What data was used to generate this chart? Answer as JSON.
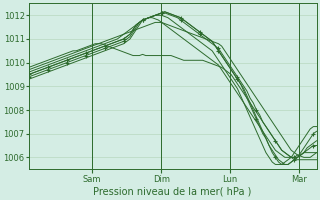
{
  "xlabel": "Pression niveau de la mer( hPa )",
  "bg_color": "#d4ede4",
  "plot_bg_color": "#d4ede4",
  "line_color": "#2d6b2d",
  "grid_color": "#b8d8c0",
  "ylim": [
    1005.5,
    1012.5
  ],
  "yticks": [
    1006,
    1007,
    1008,
    1009,
    1010,
    1011,
    1012
  ],
  "day_labels": [
    "Sam",
    "Dim",
    "Lun",
    "Mar"
  ],
  "day_positions": [
    0.22,
    0.46,
    0.7,
    0.94
  ],
  "series": [
    [
      1009.8,
      1009.85,
      1009.9,
      1009.95,
      1010.0,
      1010.05,
      1010.1,
      1010.15,
      1010.2,
      1010.25,
      1010.3,
      1010.35,
      1010.4,
      1010.45,
      1010.5,
      1010.5,
      1010.55,
      1010.6,
      1010.65,
      1010.7,
      1010.75,
      1010.8,
      1010.8,
      1010.8,
      1010.75,
      1010.7,
      1010.65,
      1010.6,
      1010.55,
      1010.5,
      1010.45,
      1010.4,
      1010.35,
      1010.3,
      1010.3,
      1010.3,
      1010.35,
      1010.3,
      1010.3,
      1010.3,
      1010.3,
      1010.3,
      1010.3,
      1010.3,
      1010.3,
      1010.3,
      1010.25,
      1010.2,
      1010.15,
      1010.1,
      1010.1,
      1010.1,
      1010.1,
      1010.1,
      1010.1,
      1010.1,
      1010.05,
      1010.0,
      1009.95,
      1009.9,
      1009.85,
      1009.8,
      1009.7,
      1009.6,
      1009.5,
      1009.3,
      1009.1,
      1008.9,
      1008.7,
      1008.5,
      1008.3,
      1008.1,
      1007.9,
      1007.7,
      1007.5,
      1007.3,
      1007.1,
      1006.9,
      1006.7,
      1006.5,
      1006.3,
      1006.2,
      1006.1,
      1006.0,
      1005.9,
      1005.9,
      1005.9,
      1005.9,
      1005.9,
      1005.9,
      1005.9,
      1005.9
    ],
    [
      1009.7,
      1009.75,
      1009.8,
      1009.85,
      1009.9,
      1009.95,
      1010.0,
      1010.05,
      1010.1,
      1010.15,
      1010.2,
      1010.25,
      1010.3,
      1010.35,
      1010.4,
      1010.45,
      1010.5,
      1010.55,
      1010.6,
      1010.65,
      1010.7,
      1010.75,
      1010.8,
      1010.85,
      1010.9,
      1010.95,
      1011.0,
      1011.05,
      1011.1,
      1011.15,
      1011.2,
      1011.25,
      1011.3,
      1011.35,
      1011.4,
      1011.45,
      1011.5,
      1011.55,
      1011.6,
      1011.65,
      1011.7,
      1011.7,
      1011.7,
      1011.65,
      1011.6,
      1011.55,
      1011.5,
      1011.45,
      1011.4,
      1011.35,
      1011.3,
      1011.25,
      1011.2,
      1011.15,
      1011.1,
      1011.05,
      1011.0,
      1010.95,
      1010.9,
      1010.85,
      1010.8,
      1010.7,
      1010.5,
      1010.3,
      1010.1,
      1009.9,
      1009.7,
      1009.5,
      1009.3,
      1009.1,
      1008.9,
      1008.7,
      1008.5,
      1008.3,
      1008.1,
      1007.9,
      1007.7,
      1007.5,
      1007.3,
      1007.1,
      1006.9,
      1006.7,
      1006.5,
      1006.3,
      1006.2,
      1006.1,
      1006.05,
      1006.0,
      1006.0,
      1006.0,
      1006.1,
      1006.2
    ],
    [
      1009.6,
      1009.65,
      1009.7,
      1009.75,
      1009.8,
      1009.85,
      1009.9,
      1009.95,
      1010.0,
      1010.05,
      1010.1,
      1010.15,
      1010.2,
      1010.25,
      1010.3,
      1010.35,
      1010.4,
      1010.45,
      1010.5,
      1010.55,
      1010.6,
      1010.65,
      1010.7,
      1010.75,
      1010.8,
      1010.85,
      1010.9,
      1010.95,
      1011.0,
      1011.1,
      1011.2,
      1011.3,
      1011.4,
      1011.5,
      1011.6,
      1011.7,
      1011.8,
      1011.85,
      1011.9,
      1011.9,
      1011.85,
      1011.8,
      1011.7,
      1011.6,
      1011.5,
      1011.4,
      1011.3,
      1011.2,
      1011.1,
      1011.0,
      1010.9,
      1010.8,
      1010.7,
      1010.6,
      1010.5,
      1010.4,
      1010.3,
      1010.2,
      1010.1,
      1010.0,
      1009.9,
      1009.7,
      1009.5,
      1009.3,
      1009.1,
      1008.9,
      1008.7,
      1008.5,
      1008.3,
      1008.1,
      1007.9,
      1007.7,
      1007.5,
      1007.3,
      1007.1,
      1006.9,
      1006.7,
      1006.5,
      1006.3,
      1006.2,
      1006.1,
      1006.0,
      1006.0,
      1006.0,
      1006.0,
      1006.0,
      1006.1,
      1006.2,
      1006.2,
      1006.2,
      1006.2,
      1006.2
    ],
    [
      1009.5,
      1009.55,
      1009.6,
      1009.65,
      1009.7,
      1009.75,
      1009.8,
      1009.85,
      1009.9,
      1009.95,
      1010.0,
      1010.05,
      1010.1,
      1010.15,
      1010.2,
      1010.25,
      1010.3,
      1010.35,
      1010.4,
      1010.45,
      1010.5,
      1010.55,
      1010.6,
      1010.65,
      1010.7,
      1010.75,
      1010.8,
      1010.85,
      1010.9,
      1010.95,
      1011.0,
      1011.1,
      1011.2,
      1011.4,
      1011.6,
      1011.7,
      1011.8,
      1011.85,
      1011.9,
      1011.95,
      1012.0,
      1012.05,
      1012.1,
      1012.1,
      1012.05,
      1012.0,
      1011.95,
      1011.9,
      1011.8,
      1011.7,
      1011.6,
      1011.5,
      1011.4,
      1011.3,
      1011.2,
      1011.1,
      1011.0,
      1010.9,
      1010.8,
      1010.7,
      1010.6,
      1010.4,
      1010.2,
      1010.0,
      1009.8,
      1009.6,
      1009.4,
      1009.2,
      1009.0,
      1008.8,
      1008.5,
      1008.3,
      1008.0,
      1007.8,
      1007.5,
      1007.3,
      1007.1,
      1006.9,
      1006.7,
      1006.5,
      1006.3,
      1006.2,
      1006.1,
      1006.0,
      1006.0,
      1006.1,
      1006.1,
      1006.2,
      1006.3,
      1006.4,
      1006.5,
      1006.5
    ],
    [
      1009.5,
      1009.55,
      1009.6,
      1009.65,
      1009.7,
      1009.75,
      1009.8,
      1009.85,
      1009.9,
      1009.95,
      1010.0,
      1010.05,
      1010.1,
      1010.15,
      1010.2,
      1010.25,
      1010.3,
      1010.35,
      1010.4,
      1010.45,
      1010.5,
      1010.55,
      1010.6,
      1010.65,
      1010.7,
      1010.75,
      1010.8,
      1010.85,
      1010.9,
      1010.95,
      1011.0,
      1011.1,
      1011.2,
      1011.4,
      1011.6,
      1011.7,
      1011.8,
      1011.85,
      1011.9,
      1011.95,
      1012.0,
      1012.05,
      1012.1,
      1012.15,
      1012.1,
      1012.05,
      1012.0,
      1011.95,
      1011.9,
      1011.8,
      1011.7,
      1011.6,
      1011.5,
      1011.4,
      1011.3,
      1011.2,
      1011.1,
      1011.0,
      1010.9,
      1010.7,
      1010.5,
      1010.3,
      1010.1,
      1009.9,
      1009.7,
      1009.5,
      1009.3,
      1009.1,
      1008.9,
      1008.6,
      1008.3,
      1008.0,
      1007.7,
      1007.4,
      1007.1,
      1006.8,
      1006.5,
      1006.3,
      1006.1,
      1005.9,
      1005.8,
      1005.7,
      1005.7,
      1005.8,
      1005.9,
      1006.0,
      1006.1,
      1006.2,
      1006.4,
      1006.5,
      1006.6,
      1006.7
    ],
    [
      1009.4,
      1009.45,
      1009.5,
      1009.55,
      1009.6,
      1009.65,
      1009.7,
      1009.75,
      1009.8,
      1009.85,
      1009.9,
      1009.95,
      1010.0,
      1010.05,
      1010.1,
      1010.15,
      1010.2,
      1010.25,
      1010.3,
      1010.35,
      1010.4,
      1010.45,
      1010.5,
      1010.55,
      1010.6,
      1010.65,
      1010.7,
      1010.75,
      1010.8,
      1010.85,
      1010.9,
      1011.0,
      1011.1,
      1011.3,
      1011.5,
      1011.7,
      1011.8,
      1011.85,
      1011.9,
      1011.95,
      1012.0,
      1012.05,
      1012.1,
      1012.15,
      1012.1,
      1012.05,
      1012.0,
      1011.95,
      1011.9,
      1011.8,
      1011.7,
      1011.6,
      1011.5,
      1011.4,
      1011.3,
      1011.2,
      1011.1,
      1011.0,
      1010.9,
      1010.7,
      1010.5,
      1010.3,
      1010.1,
      1009.9,
      1009.7,
      1009.5,
      1009.3,
      1009.1,
      1008.8,
      1008.5,
      1008.2,
      1007.9,
      1007.6,
      1007.3,
      1007.0,
      1006.8,
      1006.5,
      1006.2,
      1006.0,
      1005.8,
      1005.7,
      1005.7,
      1005.7,
      1005.8,
      1005.9,
      1006.0,
      1006.2,
      1006.4,
      1006.6,
      1006.8,
      1007.0,
      1007.1
    ],
    [
      1009.3,
      1009.35,
      1009.4,
      1009.45,
      1009.5,
      1009.55,
      1009.6,
      1009.65,
      1009.7,
      1009.75,
      1009.8,
      1009.85,
      1009.9,
      1009.95,
      1010.0,
      1010.05,
      1010.1,
      1010.15,
      1010.2,
      1010.25,
      1010.3,
      1010.35,
      1010.4,
      1010.45,
      1010.5,
      1010.55,
      1010.6,
      1010.65,
      1010.7,
      1010.75,
      1010.8,
      1010.9,
      1011.0,
      1011.2,
      1011.4,
      1011.6,
      1011.8,
      1011.85,
      1011.9,
      1011.95,
      1012.0,
      1012.0,
      1012.0,
      1011.95,
      1011.9,
      1011.8,
      1011.7,
      1011.6,
      1011.5,
      1011.4,
      1011.3,
      1011.2,
      1011.1,
      1011.0,
      1010.9,
      1010.8,
      1010.7,
      1010.6,
      1010.5,
      1010.3,
      1010.1,
      1009.9,
      1009.7,
      1009.5,
      1009.3,
      1009.1,
      1008.9,
      1008.6,
      1008.3,
      1008.0,
      1007.7,
      1007.4,
      1007.1,
      1006.8,
      1006.5,
      1006.2,
      1006.0,
      1005.8,
      1005.7,
      1005.7,
      1005.7,
      1005.8,
      1005.9,
      1006.0,
      1006.2,
      1006.4,
      1006.6,
      1006.8,
      1007.0,
      1007.2,
      1007.3,
      1007.3
    ]
  ],
  "marker_indices": [
    3,
    5
  ],
  "marker_symbol": "+",
  "marker_interval": 6,
  "n_points": 92,
  "grid_major_every": 1
}
